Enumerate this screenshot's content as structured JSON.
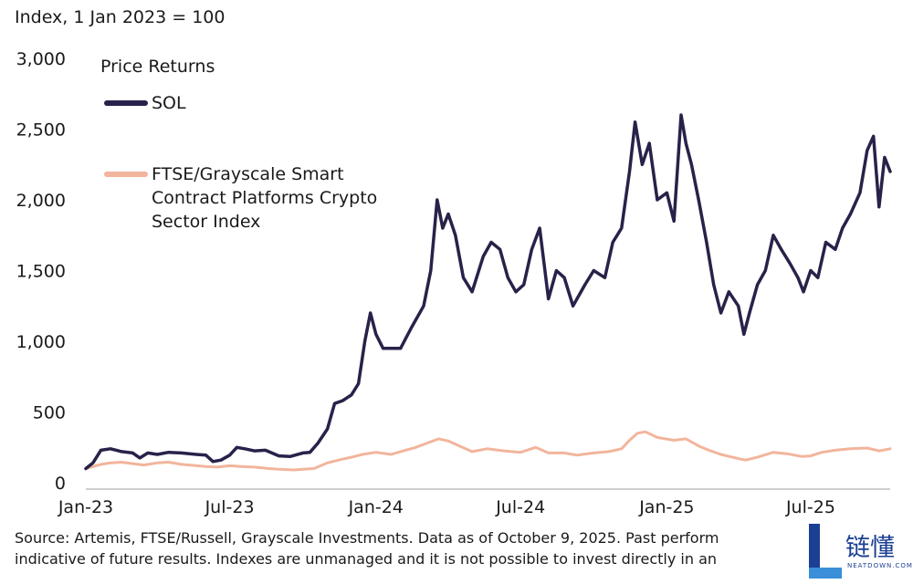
{
  "chart_data": {
    "type": "line",
    "ylabel": "Index, 1 Jan 2023 = 100",
    "ylim": [
      0,
      3000
    ],
    "yticks": [
      "0",
      "500",
      "1,000",
      "1,500",
      "2,000",
      "2,500",
      "3,000"
    ],
    "ytick_values": [
      0,
      500,
      1000,
      1500,
      2000,
      2500,
      3000
    ],
    "xlim": [
      "2023-01-01",
      "2025-10-09"
    ],
    "xticks": [
      {
        "label": "Jan-23",
        "date": "2023-01-01"
      },
      {
        "label": "Jul-23",
        "date": "2023-07-01"
      },
      {
        "label": "Jan-24",
        "date": "2024-01-01"
      },
      {
        "label": "Jul-24",
        "date": "2024-07-01"
      },
      {
        "label": "Jan-25",
        "date": "2025-01-01"
      },
      {
        "label": "Jul-25",
        "date": "2025-07-01"
      }
    ],
    "grid": false,
    "legend_title": "Price Returns",
    "legend_position": "top-left",
    "series": [
      {
        "name": "SOL",
        "color": "#28224a",
        "points": [
          [
            "2023-01-01",
            100
          ],
          [
            "2023-01-10",
            140
          ],
          [
            "2023-01-20",
            230
          ],
          [
            "2023-02-01",
            240
          ],
          [
            "2023-02-15",
            220
          ],
          [
            "2023-03-01",
            210
          ],
          [
            "2023-03-10",
            175
          ],
          [
            "2023-03-20",
            210
          ],
          [
            "2023-04-01",
            200
          ],
          [
            "2023-04-15",
            215
          ],
          [
            "2023-05-01",
            210
          ],
          [
            "2023-05-20",
            200
          ],
          [
            "2023-06-01",
            195
          ],
          [
            "2023-06-10",
            150
          ],
          [
            "2023-06-20",
            160
          ],
          [
            "2023-07-01",
            195
          ],
          [
            "2023-07-10",
            250
          ],
          [
            "2023-07-20",
            240
          ],
          [
            "2023-08-01",
            225
          ],
          [
            "2023-08-15",
            230
          ],
          [
            "2023-09-01",
            190
          ],
          [
            "2023-09-15",
            185
          ],
          [
            "2023-10-01",
            210
          ],
          [
            "2023-10-10",
            215
          ],
          [
            "2023-10-20",
            280
          ],
          [
            "2023-11-01",
            380
          ],
          [
            "2023-11-10",
            560
          ],
          [
            "2023-11-20",
            580
          ],
          [
            "2023-12-01",
            620
          ],
          [
            "2023-12-10",
            700
          ],
          [
            "2023-12-18",
            1000
          ],
          [
            "2023-12-25",
            1200
          ],
          [
            "2024-01-01",
            1050
          ],
          [
            "2024-01-10",
            950
          ],
          [
            "2024-01-20",
            950
          ],
          [
            "2024-02-01",
            950
          ],
          [
            "2024-02-15",
            1100
          ],
          [
            "2024-03-01",
            1250
          ],
          [
            "2024-03-10",
            1500
          ],
          [
            "2024-03-18",
            2000
          ],
          [
            "2024-03-25",
            1800
          ],
          [
            "2024-04-01",
            1900
          ],
          [
            "2024-04-10",
            1750
          ],
          [
            "2024-04-20",
            1450
          ],
          [
            "2024-05-01",
            1350
          ],
          [
            "2024-05-15",
            1600
          ],
          [
            "2024-05-25",
            1700
          ],
          [
            "2024-06-05",
            1650
          ],
          [
            "2024-06-15",
            1450
          ],
          [
            "2024-06-25",
            1350
          ],
          [
            "2024-07-05",
            1400
          ],
          [
            "2024-07-15",
            1650
          ],
          [
            "2024-07-25",
            1800
          ],
          [
            "2024-08-05",
            1300
          ],
          [
            "2024-08-15",
            1500
          ],
          [
            "2024-08-25",
            1450
          ],
          [
            "2024-09-05",
            1250
          ],
          [
            "2024-09-20",
            1400
          ],
          [
            "2024-10-01",
            1500
          ],
          [
            "2024-10-15",
            1450
          ],
          [
            "2024-10-25",
            1700
          ],
          [
            "2024-11-05",
            1800
          ],
          [
            "2024-11-15",
            2200
          ],
          [
            "2024-11-22",
            2550
          ],
          [
            "2024-12-01",
            2250
          ],
          [
            "2024-12-10",
            2400
          ],
          [
            "2024-12-20",
            2000
          ],
          [
            "2025-01-01",
            2050
          ],
          [
            "2025-01-10",
            1850
          ],
          [
            "2025-01-19",
            2600
          ],
          [
            "2025-01-25",
            2400
          ],
          [
            "2025-02-01",
            2250
          ],
          [
            "2025-02-10",
            2000
          ],
          [
            "2025-02-20",
            1700
          ],
          [
            "2025-03-01",
            1400
          ],
          [
            "2025-03-10",
            1200
          ],
          [
            "2025-03-20",
            1350
          ],
          [
            "2025-04-01",
            1250
          ],
          [
            "2025-04-08",
            1050
          ],
          [
            "2025-04-15",
            1200
          ],
          [
            "2025-04-25",
            1400
          ],
          [
            "2025-05-05",
            1500
          ],
          [
            "2025-05-15",
            1750
          ],
          [
            "2025-05-25",
            1650
          ],
          [
            "2025-06-05",
            1550
          ],
          [
            "2025-06-15",
            1450
          ],
          [
            "2025-06-22",
            1350
          ],
          [
            "2025-07-01",
            1500
          ],
          [
            "2025-07-10",
            1450
          ],
          [
            "2025-07-20",
            1700
          ],
          [
            "2025-08-01",
            1650
          ],
          [
            "2025-08-10",
            1800
          ],
          [
            "2025-08-20",
            1900
          ],
          [
            "2025-09-01",
            2050
          ],
          [
            "2025-09-10",
            2350
          ],
          [
            "2025-09-18",
            2450
          ],
          [
            "2025-09-25",
            1950
          ],
          [
            "2025-10-02",
            2300
          ],
          [
            "2025-10-09",
            2200
          ]
        ]
      },
      {
        "name": "FTSE/Grayscale Smart Contract Platforms Crypto Sector Index",
        "color": "#f2b59c",
        "points": [
          [
            "2023-01-01",
            100
          ],
          [
            "2023-01-20",
            130
          ],
          [
            "2023-02-01",
            140
          ],
          [
            "2023-02-15",
            145
          ],
          [
            "2023-03-01",
            135
          ],
          [
            "2023-03-15",
            125
          ],
          [
            "2023-04-01",
            140
          ],
          [
            "2023-04-15",
            145
          ],
          [
            "2023-05-01",
            130
          ],
          [
            "2023-06-01",
            115
          ],
          [
            "2023-06-15",
            110
          ],
          [
            "2023-07-01",
            120
          ],
          [
            "2023-07-15",
            115
          ],
          [
            "2023-08-01",
            110
          ],
          [
            "2023-08-20",
            100
          ],
          [
            "2023-09-01",
            95
          ],
          [
            "2023-09-20",
            90
          ],
          [
            "2023-10-01",
            95
          ],
          [
            "2023-10-15",
            100
          ],
          [
            "2023-11-01",
            140
          ],
          [
            "2023-11-15",
            160
          ],
          [
            "2023-12-01",
            180
          ],
          [
            "2023-12-15",
            200
          ],
          [
            "2024-01-01",
            215
          ],
          [
            "2024-01-20",
            200
          ],
          [
            "2024-02-01",
            220
          ],
          [
            "2024-02-20",
            250
          ],
          [
            "2024-03-10",
            290
          ],
          [
            "2024-03-20",
            310
          ],
          [
            "2024-04-01",
            295
          ],
          [
            "2024-04-15",
            260
          ],
          [
            "2024-05-01",
            220
          ],
          [
            "2024-05-20",
            240
          ],
          [
            "2024-06-10",
            225
          ],
          [
            "2024-07-01",
            215
          ],
          [
            "2024-07-20",
            250
          ],
          [
            "2024-08-05",
            210
          ],
          [
            "2024-08-25",
            210
          ],
          [
            "2024-09-10",
            195
          ],
          [
            "2024-10-01",
            210
          ],
          [
            "2024-10-20",
            220
          ],
          [
            "2024-11-05",
            240
          ],
          [
            "2024-11-15",
            300
          ],
          [
            "2024-11-25",
            350
          ],
          [
            "2024-12-05",
            360
          ],
          [
            "2024-12-20",
            320
          ],
          [
            "2025-01-10",
            300
          ],
          [
            "2025-01-25",
            310
          ],
          [
            "2025-02-10",
            260
          ],
          [
            "2025-02-25",
            225
          ],
          [
            "2025-03-10",
            200
          ],
          [
            "2025-04-01",
            170
          ],
          [
            "2025-04-10",
            160
          ],
          [
            "2025-04-25",
            180
          ],
          [
            "2025-05-15",
            215
          ],
          [
            "2025-06-01",
            205
          ],
          [
            "2025-06-20",
            185
          ],
          [
            "2025-07-01",
            190
          ],
          [
            "2025-07-15",
            215
          ],
          [
            "2025-08-01",
            230
          ],
          [
            "2025-08-20",
            240
          ],
          [
            "2025-09-10",
            245
          ],
          [
            "2025-09-25",
            225
          ],
          [
            "2025-10-09",
            240
          ]
        ]
      }
    ]
  },
  "source": {
    "line1": "Source: Artemis, FTSE/Russell, Grayscale Investments. Data as of October 9, 2025. Past perform",
    "line2": "indicative of future results. Indexes are unmanaged and it is not possible to invest directly in an"
  },
  "watermark": {
    "text_cn": "链懂",
    "text_en": "NEATDOWN.COM",
    "color": "#1b3f93"
  }
}
